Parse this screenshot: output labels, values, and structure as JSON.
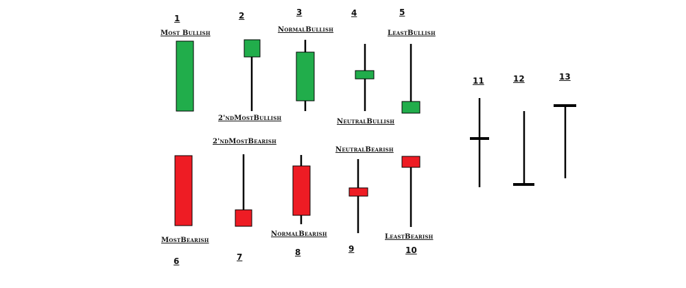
{
  "colors": {
    "bullish": "#21ad4b",
    "bearish": "#ee1c24",
    "line": "#000000"
  },
  "candles": {
    "c1": {
      "number": "1",
      "label": "Most Bullish"
    },
    "c2": {
      "number": "2",
      "label": "2'ndMostBullish"
    },
    "c3": {
      "number": "3",
      "label": "NormalBullish"
    },
    "c4": {
      "number": "4",
      "label": "NeutralBullish"
    },
    "c5": {
      "number": "5",
      "label": "LeastBullish"
    },
    "c6": {
      "number": "6",
      "label": "MostBearish"
    },
    "c7": {
      "number": "7",
      "label": "2'ndMostBearish"
    },
    "c8": {
      "number": "8",
      "label": "NormalBearish"
    },
    "c9": {
      "number": "9",
      "label": "NeutralBearish"
    },
    "c10": {
      "number": "10",
      "label": "LeastBearish"
    },
    "c11": {
      "number": "11"
    },
    "c12": {
      "number": "12"
    },
    "c13": {
      "number": "13"
    }
  }
}
